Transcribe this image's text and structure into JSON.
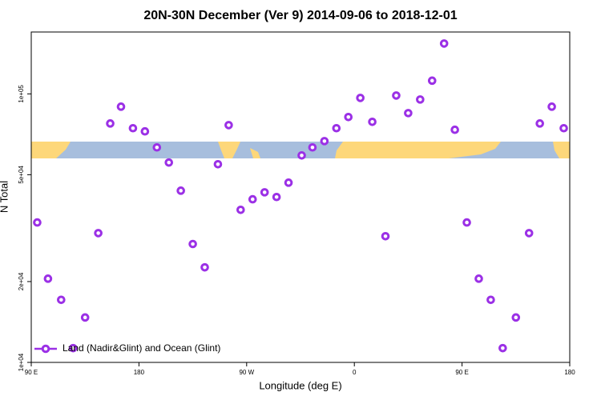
{
  "chart_data": {
    "type": "scatter",
    "title": "20N-30N December (Ver 9)   2014-09-06 to 2018-12-01",
    "xlabel": "Longitude (deg E)",
    "ylabel": "N Total",
    "log_y": true,
    "legend": "bottom-left",
    "xlim": [
      90,
      540
    ],
    "xticks": [
      {
        "value": 90,
        "label": "90 E"
      },
      180,
      {
        "value": 270,
        "label": "90 W"
      },
      {
        "value": 360,
        "label": "0"
      },
      {
        "value": 450,
        "label": "90 E"
      },
      {
        "value": 540,
        "label": "180"
      }
    ],
    "ylim": [
      10000,
      170000
    ],
    "yticks": [
      {
        "value": 10000,
        "label": "1e+04"
      },
      {
        "value": 20000,
        "label": "2e+04"
      },
      {
        "value": 50000,
        "label": "5e+04"
      },
      {
        "value": 100000,
        "label": "1e+05"
      }
    ],
    "series": [
      {
        "name": "Land (Nadir&Glint) and Ocean (Glint)",
        "color": "#9b30e6",
        "x": [
          95,
          104,
          115,
          125,
          135,
          146,
          156,
          165,
          175,
          185,
          195,
          205,
          215,
          225,
          235,
          246,
          255,
          265,
          275,
          285,
          295,
          305,
          316,
          325,
          335,
          345,
          355,
          365,
          375,
          386,
          395,
          405,
          415,
          425,
          435,
          444,
          454,
          464,
          474,
          484,
          495,
          506,
          515,
          525,
          535
        ],
        "values": [
          33200,
          20500,
          17100,
          11300,
          14700,
          30300,
          77600,
          89600,
          74500,
          72500,
          63200,
          55500,
          43600,
          27600,
          22600,
          54700,
          76500,
          37000,
          40500,
          43000,
          41300,
          46700,
          59000,
          63200,
          66700,
          74500,
          82000,
          96600,
          78700,
          29500,
          98600,
          84800,
          95300,
          112000,
          154000,
          73500,
          33200,
          20500,
          17100,
          11300,
          14700,
          30300,
          77600,
          89600,
          74500
        ]
      }
    ]
  }
}
